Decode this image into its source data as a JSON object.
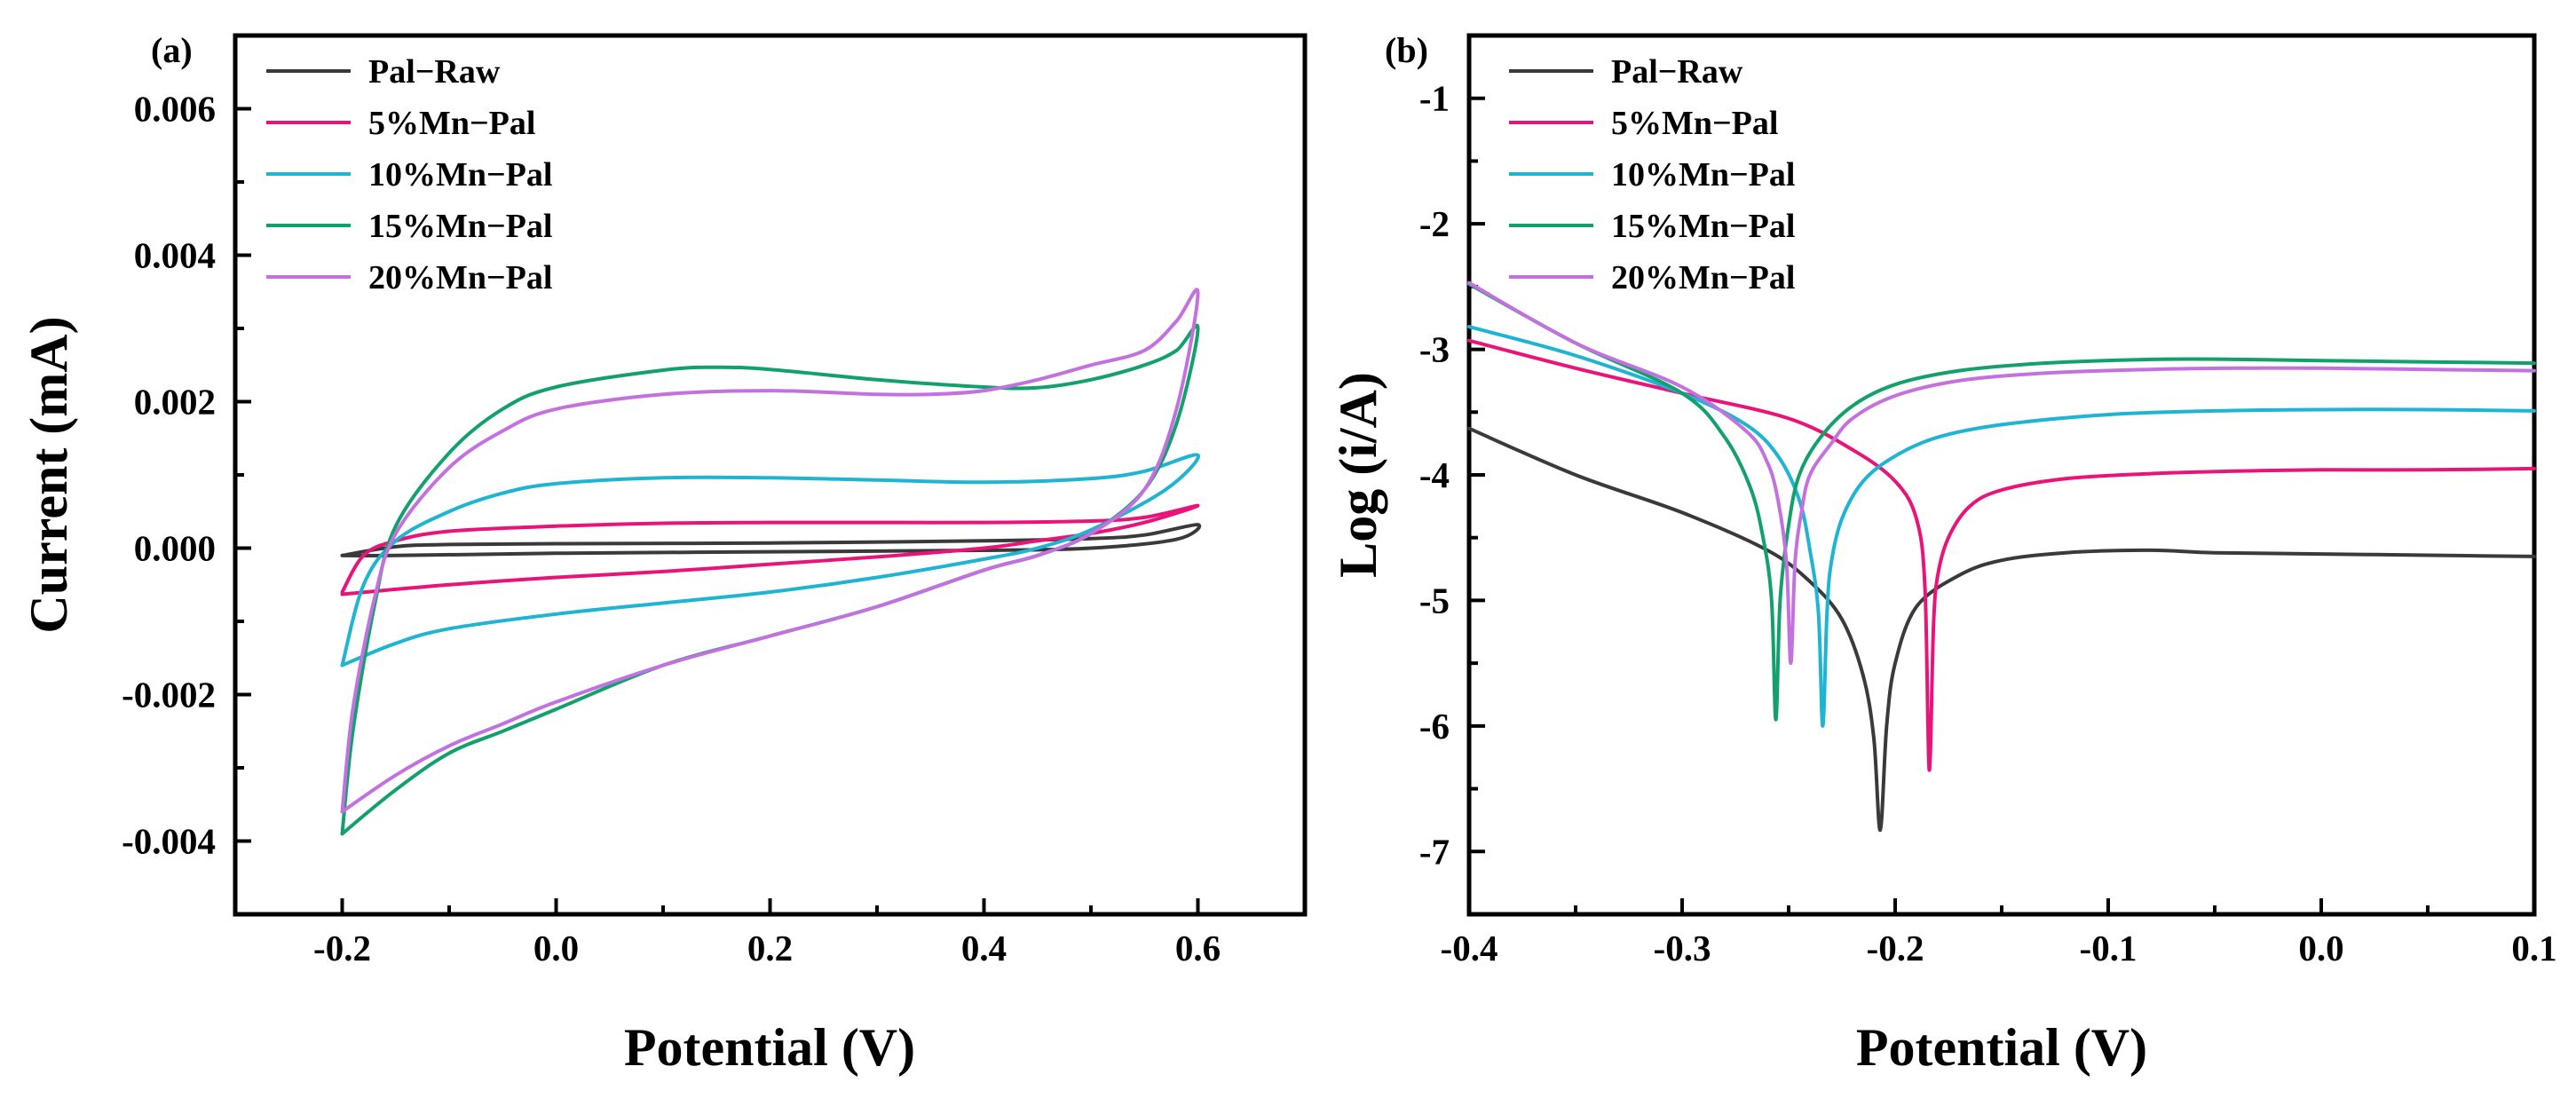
{
  "colors": {
    "Pal-Raw": "#3a3a3a",
    "5%Mn-Pal": "#e8147a",
    "10%Mn-Pal": "#1eb4d2",
    "15%Mn-Pal": "#12a06c",
    "20%Mn-Pal": "#c471e0"
  },
  "chart_data": [
    {
      "panel": "(a)",
      "type": "line",
      "title": "",
      "xlabel": "Potential (V)",
      "ylabel": "Current (mA)",
      "xlim": [
        -0.3,
        0.7
      ],
      "ylim": [
        -0.005,
        0.007
      ],
      "xticks": [
        -0.2,
        0.0,
        0.2,
        0.4,
        0.6
      ],
      "xtick_labels": [
        "-0.2",
        "0.0",
        "0.2",
        "0.4",
        "0.6"
      ],
      "yticks": [
        -0.004,
        -0.002,
        0.0,
        0.002,
        0.004,
        0.006
      ],
      "ytick_labels": [
        "-0.004",
        "-0.002",
        "0.000",
        "0.002",
        "0.004",
        "0.006"
      ],
      "legend": "top-left",
      "series": [
        {
          "name": "Pal−Raw",
          "key": "Pal-Raw",
          "x": [
            -0.2,
            -0.15,
            -0.1,
            0.0,
            0.2,
            0.4,
            0.5,
            0.55,
            0.6,
            0.58,
            0.5,
            0.4,
            0.2,
            0.0,
            -0.15,
            -0.2
          ],
          "y": [
            -0.0001,
            2e-05,
            5e-05,
            6e-05,
            7e-05,
            0.0001,
            0.00013,
            0.00018,
            0.00032,
            0.00012,
            0.0,
            -3e-05,
            -5e-05,
            -7e-05,
            -0.0001,
            -0.0001
          ]
        },
        {
          "name": "5%Mn−Pal",
          "key": "5%Mn-Pal",
          "x": [
            -0.2,
            -0.18,
            -0.15,
            -0.1,
            0.0,
            0.1,
            0.2,
            0.3,
            0.4,
            0.5,
            0.55,
            0.6,
            0.55,
            0.5,
            0.45,
            0.4,
            0.3,
            0.2,
            0.1,
            0.0,
            -0.1,
            -0.2
          ],
          "y": [
            -0.0006,
            -0.0001,
            0.0001,
            0.00023,
            0.0003,
            0.00034,
            0.00035,
            0.00035,
            0.00035,
            0.00037,
            0.00042,
            0.00058,
            0.00035,
            0.0002,
            0.0001,
            0.0,
            -0.00012,
            -0.00022,
            -0.00032,
            -0.0004,
            -0.0005,
            -0.00063
          ]
        },
        {
          "name": "10%Mn−Pal",
          "key": "10%Mn-Pal",
          "x": [
            -0.2,
            -0.18,
            -0.15,
            -0.1,
            -0.05,
            0.0,
            0.1,
            0.2,
            0.3,
            0.4,
            0.5,
            0.55,
            0.6,
            0.57,
            0.5,
            0.45,
            0.4,
            0.3,
            0.2,
            0.1,
            0.0,
            -0.1,
            -0.15,
            -0.2
          ],
          "y": [
            -0.0016,
            -0.0005,
            0.0001,
            0.0005,
            0.00075,
            0.00088,
            0.00096,
            0.00096,
            0.00093,
            0.0009,
            0.00095,
            0.00105,
            0.00127,
            0.0008,
            0.00025,
            0.0,
            -0.00015,
            -0.0004,
            -0.0006,
            -0.00075,
            -0.0009,
            -0.0011,
            -0.0013,
            -0.0016
          ]
        },
        {
          "name": "15%Mn−Pal",
          "key": "15%Mn-Pal",
          "x": [
            -0.2,
            -0.19,
            -0.17,
            -0.15,
            -0.1,
            -0.05,
            0.0,
            0.1,
            0.15,
            0.2,
            0.3,
            0.4,
            0.45,
            0.5,
            0.55,
            0.58,
            0.6,
            0.58,
            0.55,
            0.5,
            0.45,
            0.4,
            0.3,
            0.2,
            0.1,
            0.0,
            -0.05,
            -0.1,
            -0.15,
            -0.2
          ],
          "y": [
            -0.0039,
            -0.0025,
            -0.0008,
            0.0003,
            0.0013,
            0.0019,
            0.0022,
            0.00243,
            0.00247,
            0.00244,
            0.0023,
            0.0022,
            0.00219,
            0.0023,
            0.0025,
            0.0027,
            0.003,
            0.0017,
            0.0008,
            0.0002,
            -0.0001,
            -0.0003,
            -0.0008,
            -0.0012,
            -0.0016,
            -0.0022,
            -0.0025,
            -0.0028,
            -0.0033,
            -0.0039
          ]
        },
        {
          "name": "20%Mn−Pal",
          "key": "20%Mn-Pal",
          "x": [
            -0.2,
            -0.19,
            -0.17,
            -0.15,
            -0.1,
            -0.05,
            0.0,
            0.1,
            0.2,
            0.3,
            0.35,
            0.4,
            0.45,
            0.5,
            0.55,
            0.58,
            0.6,
            0.58,
            0.55,
            0.5,
            0.45,
            0.4,
            0.3,
            0.2,
            0.1,
            0.0,
            -0.05,
            -0.1,
            -0.15,
            -0.2
          ],
          "y": [
            -0.0036,
            -0.0022,
            -0.0007,
            0.0002,
            0.0011,
            0.0016,
            0.0019,
            0.0021,
            0.00215,
            0.0021,
            0.0021,
            0.00215,
            0.0023,
            0.0025,
            0.0027,
            0.0031,
            0.00348,
            0.0019,
            0.0008,
            0.0002,
            -0.0001,
            -0.0003,
            -0.0008,
            -0.0012,
            -0.0016,
            -0.0021,
            -0.0024,
            -0.0027,
            -0.0031,
            -0.0036
          ]
        }
      ]
    },
    {
      "panel": "(b)",
      "type": "line",
      "title": "",
      "xlabel": "Potential (V)",
      "ylabel": "Log (i/A)",
      "xlim": [
        -0.4,
        0.1
      ],
      "ylim": [
        -7.5,
        -0.5
      ],
      "xticks": [
        -0.4,
        -0.3,
        -0.2,
        -0.1,
        0.0,
        0.1
      ],
      "xtick_labels": [
        "-0.4",
        "-0.3",
        "-0.2",
        "-0.1",
        "0.0",
        "0.1"
      ],
      "yticks": [
        -7,
        -6,
        -5,
        -4,
        -3,
        -2,
        -1
      ],
      "ytick_labels": [
        "-7",
        "-6",
        "-5",
        "-4",
        "-3",
        "-2",
        "-1"
      ],
      "legend": "top-left",
      "series": [
        {
          "name": "Pal−Raw",
          "key": "Pal-Raw",
          "x": [
            -0.4,
            -0.35,
            -0.3,
            -0.26,
            -0.24,
            -0.225,
            -0.215,
            -0.21,
            -0.207,
            -0.204,
            -0.2,
            -0.19,
            -0.17,
            -0.15,
            -0.12,
            -0.08,
            -0.05,
            0.0,
            0.05,
            0.1
          ],
          "y": [
            -3.63,
            -4.0,
            -4.3,
            -4.6,
            -4.85,
            -5.15,
            -5.6,
            -6.1,
            -6.83,
            -6.0,
            -5.5,
            -5.05,
            -4.8,
            -4.68,
            -4.62,
            -4.6,
            -4.62,
            -4.63,
            -4.64,
            -4.65
          ]
        },
        {
          "name": "5%Mn−Pal",
          "key": "5%Mn-Pal",
          "x": [
            -0.4,
            -0.35,
            -0.3,
            -0.25,
            -0.22,
            -0.2,
            -0.19,
            -0.186,
            -0.184,
            -0.182,
            -0.18,
            -0.175,
            -0.165,
            -0.15,
            -0.12,
            -0.08,
            -0.04,
            0.0,
            0.05,
            0.1
          ],
          "y": [
            -2.93,
            -3.15,
            -3.35,
            -3.55,
            -3.8,
            -4.05,
            -4.35,
            -4.9,
            -6.35,
            -5.2,
            -4.8,
            -4.5,
            -4.25,
            -4.12,
            -4.03,
            -3.99,
            -3.97,
            -3.96,
            -3.96,
            -3.95
          ]
        },
        {
          "name": "10%Mn−Pal",
          "key": "10%Mn-Pal",
          "x": [
            -0.4,
            -0.35,
            -0.3,
            -0.27,
            -0.255,
            -0.245,
            -0.24,
            -0.236,
            -0.234,
            -0.232,
            -0.23,
            -0.225,
            -0.215,
            -0.2,
            -0.18,
            -0.15,
            -0.1,
            -0.05,
            0.0,
            0.05,
            0.1
          ],
          "y": [
            -2.82,
            -3.05,
            -3.35,
            -3.6,
            -3.85,
            -4.2,
            -4.6,
            -5.1,
            -6.0,
            -5.1,
            -4.7,
            -4.35,
            -4.05,
            -3.85,
            -3.7,
            -3.6,
            -3.52,
            -3.49,
            -3.48,
            -3.48,
            -3.49
          ]
        },
        {
          "name": "15%Mn−Pal",
          "key": "15%Mn-Pal",
          "x": [
            -0.4,
            -0.35,
            -0.3,
            -0.28,
            -0.268,
            -0.262,
            -0.258,
            -0.256,
            -0.254,
            -0.25,
            -0.245,
            -0.235,
            -0.22,
            -0.2,
            -0.17,
            -0.13,
            -0.08,
            -0.04,
            0.0,
            0.05,
            0.1
          ],
          "y": [
            -2.48,
            -2.95,
            -3.35,
            -3.7,
            -4.1,
            -4.5,
            -5.0,
            -5.95,
            -5.0,
            -4.4,
            -4.0,
            -3.7,
            -3.45,
            -3.28,
            -3.17,
            -3.11,
            -3.08,
            -3.08,
            -3.09,
            -3.1,
            -3.11
          ]
        },
        {
          "name": "20%Mn−Pal",
          "key": "20%Mn-Pal",
          "x": [
            -0.4,
            -0.35,
            -0.3,
            -0.27,
            -0.26,
            -0.255,
            -0.251,
            -0.249,
            -0.247,
            -0.244,
            -0.24,
            -0.23,
            -0.22,
            -0.2,
            -0.17,
            -0.13,
            -0.08,
            -0.04,
            0.0,
            0.05,
            0.1
          ],
          "y": [
            -2.47,
            -2.95,
            -3.3,
            -3.65,
            -3.9,
            -4.2,
            -4.7,
            -5.5,
            -4.7,
            -4.3,
            -4.0,
            -3.75,
            -3.55,
            -3.37,
            -3.25,
            -3.19,
            -3.16,
            -3.15,
            -3.15,
            -3.16,
            -3.17
          ]
        }
      ]
    }
  ]
}
